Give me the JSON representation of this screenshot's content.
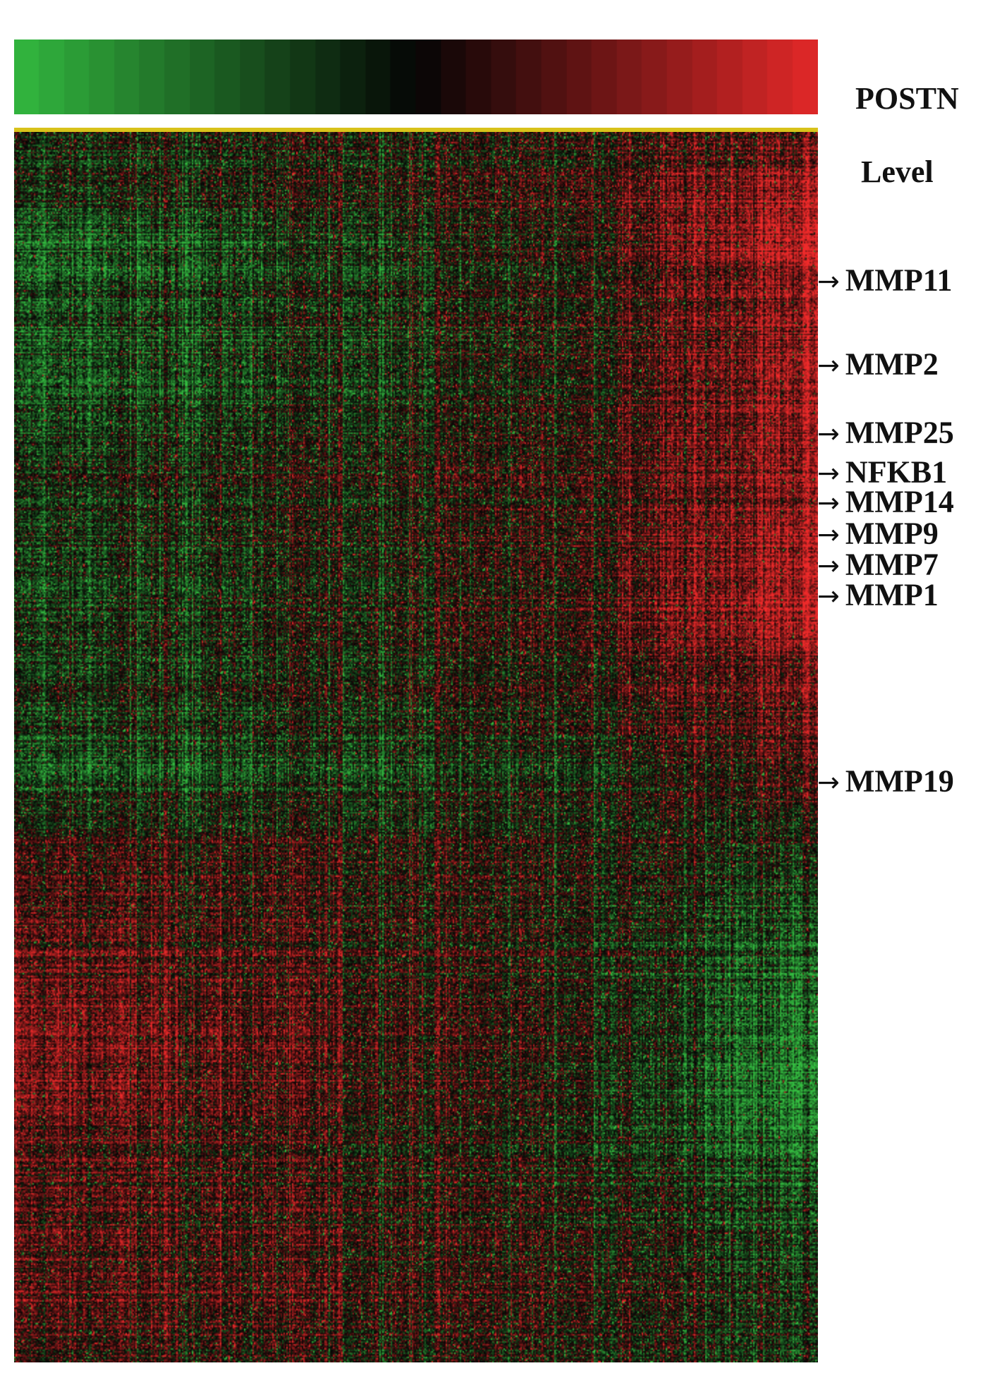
{
  "legend": {
    "title_line1": "POSTN",
    "title_line2": "Level"
  },
  "colors": {
    "low": "#35c142",
    "mid": "#050505",
    "high": "#ee2a2a",
    "top_line": "#d8c21a"
  },
  "chart_data": {
    "type": "heatmap",
    "color_scale": {
      "low": "green",
      "mid": "black",
      "high": "red"
    },
    "annotated_genes": [
      "MMP11",
      "MMP2",
      "MMP25",
      "NFKB1",
      "MMP14",
      "MMP9",
      "MMP7",
      "MMP1",
      "MMP19"
    ]
  }
}
